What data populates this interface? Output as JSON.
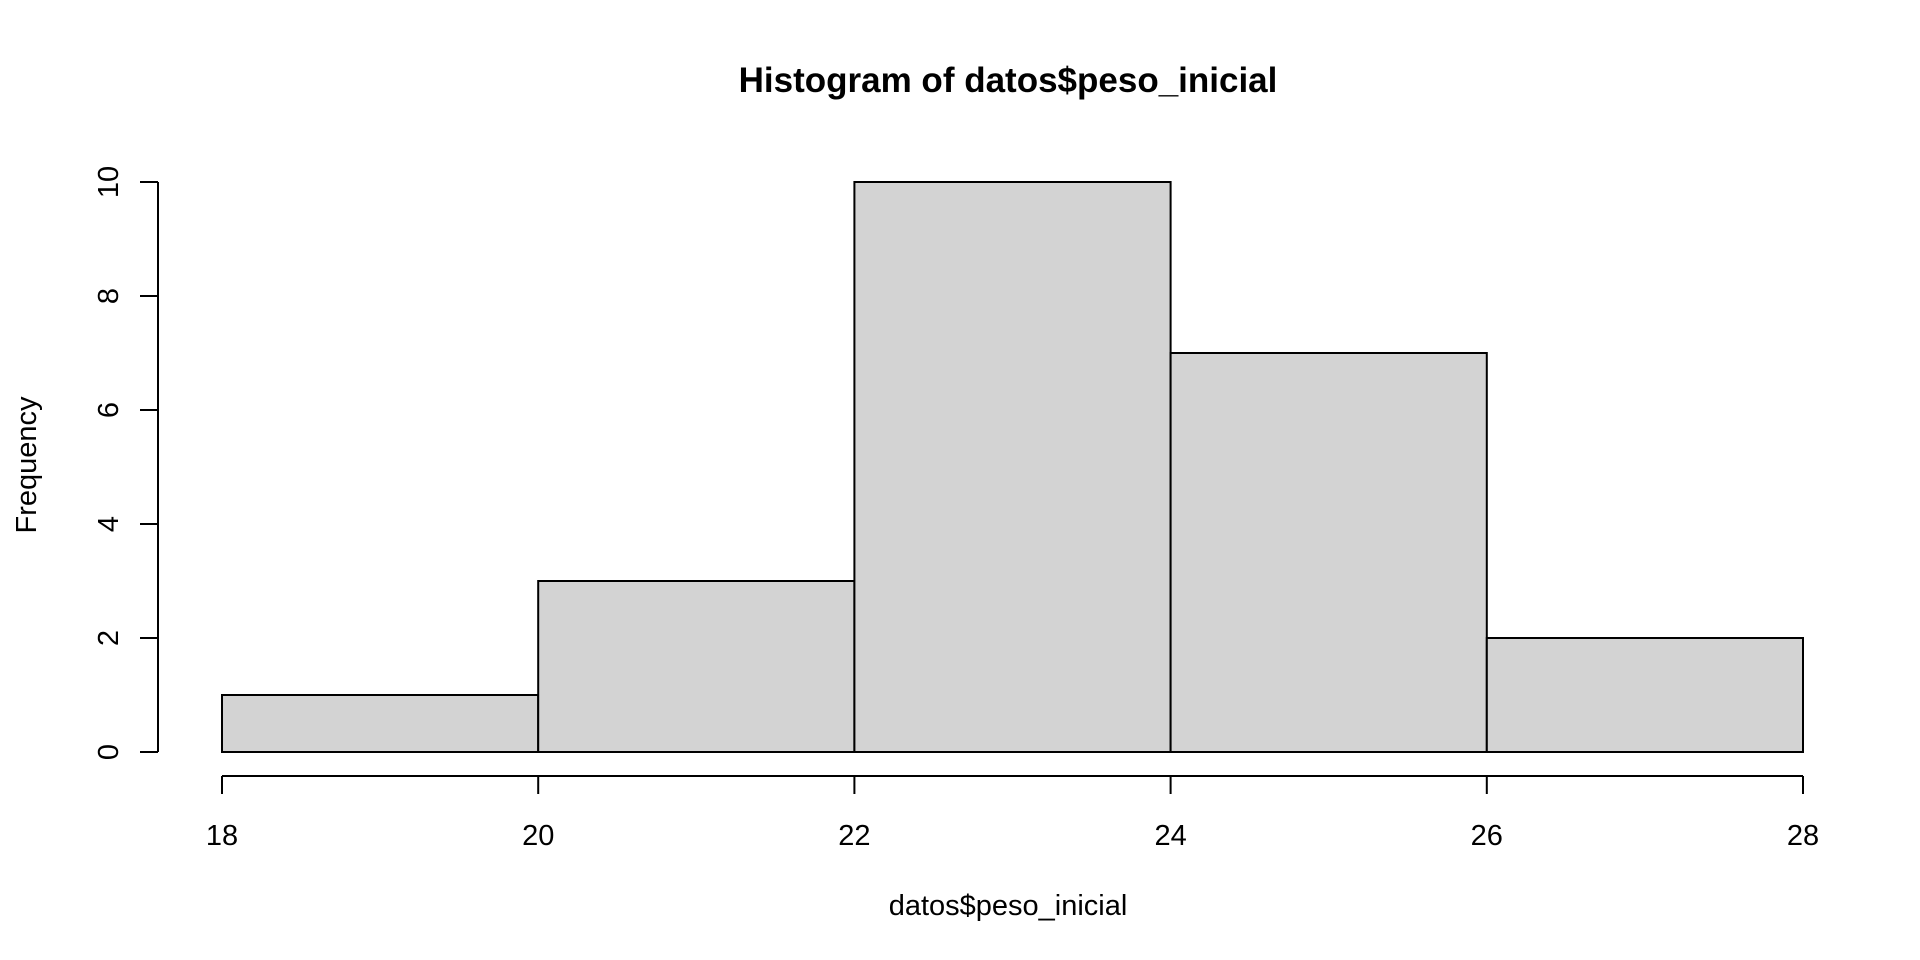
{
  "chart_data": {
    "type": "bar",
    "title": "Histogram of datos$peso_inicial",
    "xlabel": "datos$peso_inicial",
    "ylabel": "Frequency",
    "bins": [
      {
        "from": 18,
        "to": 20,
        "count": 1
      },
      {
        "from": 20,
        "to": 22,
        "count": 3
      },
      {
        "from": 22,
        "to": 24,
        "count": 10
      },
      {
        "from": 24,
        "to": 26,
        "count": 7
      },
      {
        "from": 26,
        "to": 28,
        "count": 2
      }
    ],
    "xlim": [
      18,
      28
    ],
    "ylim": [
      0,
      10
    ],
    "x_ticks": [
      18,
      20,
      22,
      24,
      26,
      28
    ],
    "y_ticks": [
      0,
      2,
      4,
      6,
      8,
      10
    ],
    "grid": false,
    "colors": {
      "bar_fill": "#d3d3d3",
      "bar_stroke": "#000000"
    }
  }
}
